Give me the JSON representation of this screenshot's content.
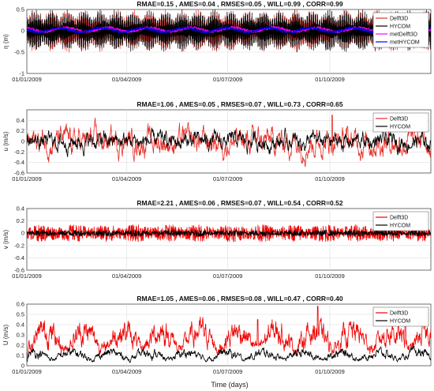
{
  "figure": {
    "xlabel": "Time (days)"
  },
  "chart_data": [
    {
      "type": "line",
      "title": "RMAE=0.15  ,  AMES=0.04  ,  RMSES=0.05  ,  WILL=0.99  ,  CORR=0.99",
      "xlabel": "",
      "ylabel": "η (m)",
      "x_range": [
        "2009-01-01",
        "2009-12-31"
      ],
      "x_ticks": [
        "01/01/2009",
        "01/04/2009",
        "01/07/2009",
        "01/10/2009"
      ],
      "ylim": [
        -1,
        0.5
      ],
      "y_ticks": [
        -1,
        -0.5,
        0,
        0.5
      ],
      "grid": true,
      "legend_position": "top-right",
      "series": [
        {
          "name": "Delft3D",
          "color": "#e8302a",
          "kind": "tidal",
          "amplitude": 0.45,
          "mean": 0.0
        },
        {
          "name": "HYCOM",
          "color": "#000000",
          "kind": "tidal",
          "amplitude": 0.45,
          "mean": 0.0
        },
        {
          "name": "metDelft3D",
          "color": "#ff00ff",
          "kind": "smooth",
          "amplitude": 0.08,
          "mean": 0.03
        },
        {
          "name": "metHYCOM",
          "color": "#0000ff",
          "kind": "smooth",
          "amplitude": 0.08,
          "mean": 0.02
        }
      ]
    },
    {
      "type": "line",
      "title": "RMAE=1.06  ,  AMES=0.05  ,  RMSES=0.07  ,  WILL=0.73  ,  CORR=0.65",
      "xlabel": "",
      "ylabel": "u (m/s)",
      "x_range": [
        "2009-01-01",
        "2009-12-31"
      ],
      "x_ticks": [
        "01/01/2009",
        "01/04/2009",
        "01/07/2009",
        "01/10/2009"
      ],
      "ylim": [
        -0.6,
        0.6
      ],
      "y_ticks": [
        -0.6,
        -0.4,
        -0.2,
        0,
        0.2,
        0.4
      ],
      "grid": true,
      "legend_position": "top-right",
      "series": [
        {
          "name": "Delft3D",
          "color": "#e8302a",
          "kind": "noisy",
          "amplitude": 0.12,
          "mean": 0.0
        },
        {
          "name": "HYCOM",
          "color": "#000000",
          "kind": "noisy",
          "amplitude": 0.08,
          "mean": 0.0
        }
      ],
      "peaks": [
        {
          "date": "2009-10-03",
          "value": 0.5
        }
      ]
    },
    {
      "type": "line",
      "title": "RMAE=2.21  ,  AMES=0.06  ,  RMSES=0.07  ,  WILL=0.54  ,  CORR=0.52",
      "xlabel": "",
      "ylabel": "v (m/s)",
      "x_range": [
        "2009-01-01",
        "2009-12-31"
      ],
      "x_ticks": [
        "01/01/2009",
        "01/04/2009",
        "01/07/2009",
        "01/10/2009"
      ],
      "ylim": [
        -0.6,
        0.4
      ],
      "y_ticks": [
        -0.6,
        -0.4,
        -0.2,
        0,
        0.2,
        0.4
      ],
      "grid": true,
      "legend_position": "top-right",
      "series": [
        {
          "name": "Delft3D",
          "color": "#ee0000",
          "kind": "dense",
          "amplitude": 0.14,
          "mean": 0.0
        },
        {
          "name": "HYCOM",
          "color": "#000000",
          "kind": "dense",
          "amplitude": 0.05,
          "mean": 0.0
        }
      ]
    },
    {
      "type": "line",
      "title": "RMAE=1.05  ,  AMES=0.06  ,  RMSES=0.08  ,  WILL=0.47  ,  CORR=0.40",
      "xlabel": "Time (days)",
      "ylabel": "U (m/s)",
      "x_range": [
        "2009-01-01",
        "2009-12-31"
      ],
      "x_ticks": [
        "01/01/2009",
        "01/04/2009",
        "01/07/2009",
        "01/10/2009"
      ],
      "ylim": [
        0,
        0.6
      ],
      "y_ticks": [
        0,
        0.1,
        0.2,
        0.3,
        0.4,
        0.5,
        0.6
      ],
      "grid": true,
      "legend_position": "top-right",
      "series": [
        {
          "name": "Delft3D",
          "color": "#ee0000",
          "kind": "positive",
          "amplitude": 0.16,
          "mean": 0.08
        },
        {
          "name": "HYCOM",
          "color": "#000000",
          "kind": "positive",
          "amplitude": 0.06,
          "mean": 0.03
        }
      ],
      "peaks": [
        {
          "date": "2009-09-20",
          "value": 0.58
        },
        {
          "date": "2009-07-28",
          "value": 0.45
        },
        {
          "date": "2009-12-08",
          "value": 0.4
        }
      ]
    }
  ]
}
